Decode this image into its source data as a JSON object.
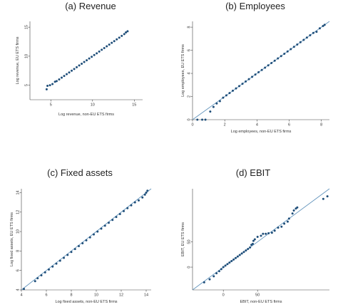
{
  "colors": {
    "points": "#1f4e79",
    "reference_line": "#5b8fb9",
    "axes": "#444444",
    "text": "#222222"
  },
  "chart_data": [
    {
      "type": "scatter",
      "title": "(a) Revenue",
      "xlabel": "Log revenue, non-EU ETS firms",
      "ylabel": "Log revenue, EU ETS firms",
      "xlim": [
        2.5,
        16
      ],
      "ylim": [
        2.5,
        16
      ],
      "xticks": [
        {
          "v": 5,
          "label": "5"
        },
        {
          "v": 10,
          "label": "10"
        },
        {
          "v": 15,
          "label": "15"
        }
      ],
      "yticks": [
        {
          "v": 5,
          "label": "5"
        },
        {
          "v": 10,
          "label": "10"
        },
        {
          "v": 15,
          "label": "15"
        }
      ],
      "reference_line": false,
      "points": [
        [
          4.5,
          4.3
        ],
        [
          4.6,
          4.9
        ],
        [
          4.9,
          5.0
        ],
        [
          5.2,
          5.2
        ],
        [
          5.5,
          5.6
        ],
        [
          5.7,
          5.7
        ],
        [
          6.0,
          6.0
        ],
        [
          6.3,
          6.3
        ],
        [
          6.6,
          6.6
        ],
        [
          6.9,
          6.9
        ],
        [
          7.2,
          7.2
        ],
        [
          7.5,
          7.5
        ],
        [
          7.8,
          7.8
        ],
        [
          8.1,
          8.1
        ],
        [
          8.4,
          8.4
        ],
        [
          8.7,
          8.7
        ],
        [
          9.0,
          9.0
        ],
        [
          9.3,
          9.3
        ],
        [
          9.6,
          9.6
        ],
        [
          9.9,
          9.9
        ],
        [
          10.2,
          10.2
        ],
        [
          10.5,
          10.5
        ],
        [
          10.8,
          10.8
        ],
        [
          11.1,
          11.1
        ],
        [
          11.4,
          11.4
        ],
        [
          11.7,
          11.7
        ],
        [
          12.0,
          12.0
        ],
        [
          12.3,
          12.3
        ],
        [
          12.6,
          12.6
        ],
        [
          12.9,
          12.9
        ],
        [
          13.2,
          13.2
        ],
        [
          13.5,
          13.5
        ],
        [
          13.8,
          13.8
        ],
        [
          14.0,
          14.1
        ],
        [
          14.2,
          14.3
        ]
      ]
    },
    {
      "type": "scatter",
      "title": "(b) Employees",
      "xlabel": "Log employees, non-EU ETS firms",
      "ylabel": "Log employees, EU ETS firms",
      "xlim": [
        0,
        8.5
      ],
      "ylim": [
        0,
        8.5
      ],
      "xticks": [
        {
          "v": 0,
          "label": "0"
        },
        {
          "v": 2,
          "label": "2"
        },
        {
          "v": 4,
          "label": "4"
        },
        {
          "v": 6,
          "label": "6"
        },
        {
          "v": 8,
          "label": "8"
        }
      ],
      "yticks": [
        {
          "v": 0,
          "label": "0"
        },
        {
          "v": 2,
          "label": "2"
        },
        {
          "v": 4,
          "label": "4"
        },
        {
          "v": 6,
          "label": "6"
        },
        {
          "v": 8,
          "label": "8"
        }
      ],
      "reference_line": true,
      "points": [
        [
          0.3,
          0.0
        ],
        [
          0.6,
          0.0
        ],
        [
          0.8,
          0.0
        ],
        [
          1.1,
          0.7
        ],
        [
          1.3,
          1.1
        ],
        [
          1.5,
          1.4
        ],
        [
          1.7,
          1.6
        ],
        [
          1.9,
          1.9
        ],
        [
          2.1,
          2.1
        ],
        [
          2.3,
          2.3
        ],
        [
          2.5,
          2.5
        ],
        [
          2.7,
          2.7
        ],
        [
          2.9,
          2.9
        ],
        [
          3.1,
          3.1
        ],
        [
          3.3,
          3.3
        ],
        [
          3.5,
          3.5
        ],
        [
          3.7,
          3.7
        ],
        [
          3.9,
          3.9
        ],
        [
          4.1,
          4.1
        ],
        [
          4.3,
          4.3
        ],
        [
          4.5,
          4.5
        ],
        [
          4.7,
          4.7
        ],
        [
          4.9,
          4.9
        ],
        [
          5.1,
          5.1
        ],
        [
          5.3,
          5.3
        ],
        [
          5.5,
          5.5
        ],
        [
          5.7,
          5.7
        ],
        [
          5.9,
          5.9
        ],
        [
          6.1,
          6.1
        ],
        [
          6.3,
          6.3
        ],
        [
          6.5,
          6.5
        ],
        [
          6.7,
          6.7
        ],
        [
          6.9,
          6.9
        ],
        [
          7.1,
          7.1
        ],
        [
          7.3,
          7.3
        ],
        [
          7.5,
          7.5
        ],
        [
          7.7,
          7.6
        ],
        [
          7.9,
          7.9
        ],
        [
          8.1,
          8.1
        ],
        [
          8.2,
          8.2
        ]
      ]
    },
    {
      "type": "scatter",
      "title": "(c) Fixed assets",
      "xlabel": "Log fixed assets, non-EU ETS firms",
      "ylabel": "Log fixed assets, EU ETS firms",
      "xlim": [
        4,
        14.4
      ],
      "ylim": [
        4,
        14.4
      ],
      "xticks": [
        {
          "v": 4,
          "label": "4"
        },
        {
          "v": 6,
          "label": "6"
        },
        {
          "v": 8,
          "label": "8"
        },
        {
          "v": 10,
          "label": "10"
        },
        {
          "v": 12,
          "label": "12"
        },
        {
          "v": 14,
          "label": "14"
        }
      ],
      "yticks": [
        {
          "v": 4,
          "label": "4"
        },
        {
          "v": 6,
          "label": "6"
        },
        {
          "v": 8,
          "label": "8"
        },
        {
          "v": 10,
          "label": "10"
        },
        {
          "v": 12,
          "label": "12"
        },
        {
          "v": 14,
          "label": "14"
        }
      ],
      "reference_line": true,
      "points": [
        [
          4.2,
          4.1
        ],
        [
          5.1,
          4.9
        ],
        [
          5.3,
          5.2
        ],
        [
          5.6,
          5.5
        ],
        [
          5.9,
          5.8
        ],
        [
          6.2,
          6.1
        ],
        [
          6.5,
          6.4
        ],
        [
          6.8,
          6.7
        ],
        [
          7.1,
          7.0
        ],
        [
          7.4,
          7.3
        ],
        [
          7.7,
          7.6
        ],
        [
          8.0,
          7.9
        ],
        [
          8.3,
          8.2
        ],
        [
          8.6,
          8.5
        ],
        [
          8.9,
          8.8
        ],
        [
          9.2,
          9.1
        ],
        [
          9.5,
          9.4
        ],
        [
          9.8,
          9.7
        ],
        [
          10.1,
          10.0
        ],
        [
          10.4,
          10.3
        ],
        [
          10.7,
          10.6
        ],
        [
          11.0,
          10.9
        ],
        [
          11.3,
          11.2
        ],
        [
          11.6,
          11.5
        ],
        [
          11.9,
          11.8
        ],
        [
          12.2,
          12.1
        ],
        [
          12.5,
          12.4
        ],
        [
          12.8,
          12.7
        ],
        [
          13.1,
          13.0
        ],
        [
          13.4,
          13.2
        ],
        [
          13.7,
          13.5
        ],
        [
          13.9,
          13.8
        ],
        [
          14.0,
          14.0
        ],
        [
          14.1,
          14.2
        ]
      ]
    },
    {
      "type": "scatter",
      "title": "(d) EBIT",
      "xlabel": "EBIT, non-EU ETS firms",
      "ylabel": "EBIT, EU ETS firms",
      "xlim": [
        -45,
        155
      ],
      "ylim": [
        -45,
        155
      ],
      "xticks": [
        {
          "v": 0,
          "label": "0"
        },
        {
          "v": 50,
          "label": "50"
        }
      ],
      "yticks": [
        {
          "v": 0,
          "label": "0"
        },
        {
          "v": 50,
          "label": "50"
        }
      ],
      "reference_line": true,
      "points": [
        [
          -28,
          -30
        ],
        [
          -20,
          -24
        ],
        [
          -14,
          -18
        ],
        [
          -10,
          -12
        ],
        [
          -6,
          -8
        ],
        [
          -3,
          -4
        ],
        [
          0,
          0
        ],
        [
          3,
          3
        ],
        [
          6,
          6
        ],
        [
          9,
          9
        ],
        [
          12,
          12
        ],
        [
          15,
          15
        ],
        [
          18,
          18
        ],
        [
          21,
          21
        ],
        [
          24,
          24
        ],
        [
          27,
          27
        ],
        [
          30,
          30
        ],
        [
          33,
          33
        ],
        [
          36,
          36
        ],
        [
          39,
          39
        ],
        [
          41,
          44
        ],
        [
          43,
          46
        ],
        [
          44,
          52
        ],
        [
          46,
          55
        ],
        [
          50,
          60
        ],
        [
          55,
          62
        ],
        [
          58,
          66
        ],
        [
          62,
          66
        ],
        [
          66,
          67
        ],
        [
          71,
          68
        ],
        [
          75,
          72
        ],
        [
          80,
          78
        ],
        [
          85,
          80
        ],
        [
          89,
          86
        ],
        [
          94,
          90
        ],
        [
          96,
          96
        ],
        [
          101,
          106
        ],
        [
          103,
          112
        ],
        [
          106,
          116
        ],
        [
          108,
          118
        ],
        [
          146,
          135
        ],
        [
          152,
          140
        ]
      ]
    }
  ]
}
